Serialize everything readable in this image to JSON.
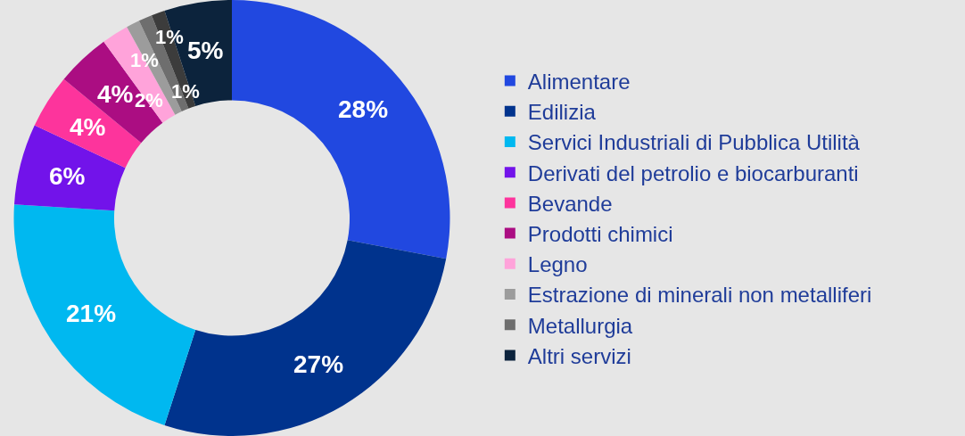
{
  "chart_data": {
    "type": "donut",
    "categories": [
      "Alimentare",
      "Edilizia",
      "Servici Industriali di Pubblica Utilità",
      "Derivati del petrolio e biocarburanti",
      "Bevande",
      "Prodotti chimici",
      "Legno",
      "Estrazione di minerali non metalliferi",
      "Metallurgia",
      null,
      "Altri servizi"
    ],
    "values": [
      28,
      27,
      21,
      6,
      4,
      4,
      2,
      1,
      1,
      1,
      5
    ],
    "colors": [
      "#2148e0",
      "#00338d",
      "#00b8f0",
      "#7213ea",
      "#fd349c",
      "#ab0d82",
      "#ffa3da",
      "#9c9c9c",
      "#6e6e6e",
      "#3c3c3c",
      "#0c233c"
    ],
    "value_labels": [
      "28%",
      "27%",
      "21%",
      "6%",
      "4%",
      "4%",
      "2%",
      "1%",
      "1%",
      "1%",
      "5%"
    ],
    "legend": "right"
  }
}
